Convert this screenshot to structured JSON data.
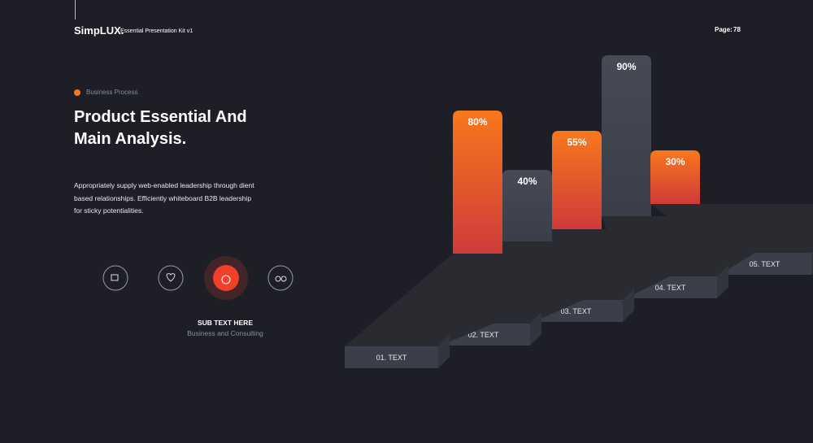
{
  "header": {
    "brand": "SimpLUX.",
    "kit": "Essential Presentation Kit v1",
    "page_label": "Page:",
    "page_number": "78"
  },
  "content": {
    "tag": "Business Process",
    "title_lines": [
      "Product Essential And",
      "Main Analysis."
    ],
    "body_lines": [
      "Appropriately supply web-enabled leadership through dient",
      "based relationships. Efficiently whiteboard B2B leadership",
      "for sticky potentialities."
    ],
    "sub_title": "SUB TEXT HERE",
    "sub_text": "Business and Consulting"
  },
  "chart_data": {
    "type": "bar3d",
    "categories": [
      "01. TEXT",
      "02. TEXT",
      "03. TEXT",
      "04. TEXT",
      "05. TEXT"
    ],
    "values": [
      80,
      40,
      55,
      90,
      30
    ],
    "value_labels": [
      "80%",
      "40%",
      "55%",
      "90%",
      "30%"
    ],
    "colors": [
      "#f8781c",
      "#454a55",
      "#f8781c",
      "#454a55",
      "#f8781c"
    ],
    "colors_bottom": [
      "#cf3a3a",
      "#3a3e48",
      "#cf3a3a",
      "#3a3e48",
      "#cf3a3a"
    ]
  }
}
